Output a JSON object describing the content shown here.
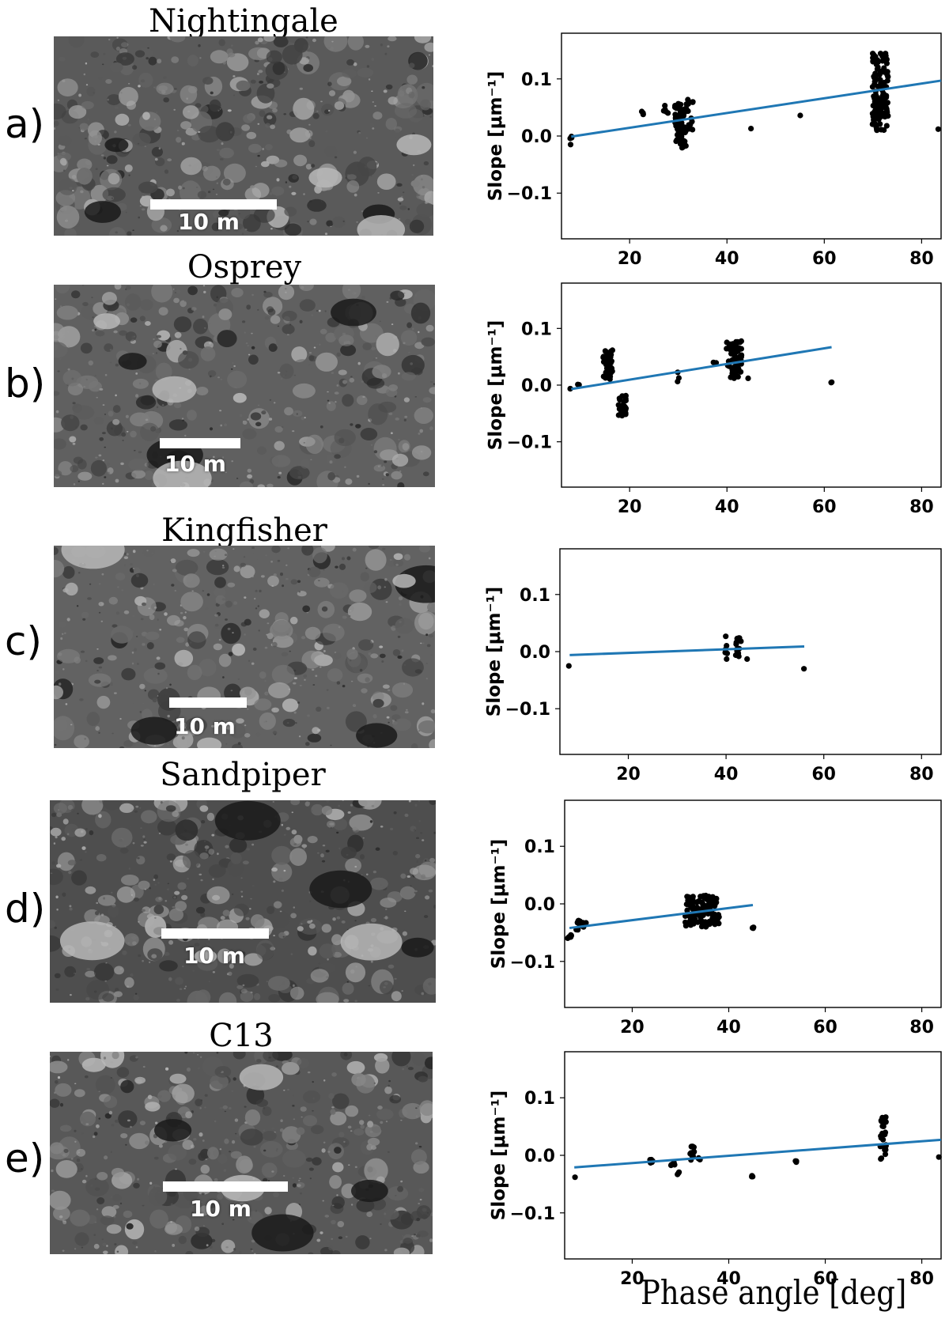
{
  "x_axis_label": "Phase angle [deg]",
  "panels": [
    {
      "letter": "a)",
      "site": "Nightingale",
      "scale": "10 m",
      "ylabel": "Slope [μm⁻¹]"
    },
    {
      "letter": "b)",
      "site": "Osprey",
      "scale": "10 m",
      "ylabel": "Slope [μm⁻¹]"
    },
    {
      "letter": "c)",
      "site": "Kingfisher",
      "scale": "10 m",
      "ylabel": "Slope [μm⁻¹]"
    },
    {
      "letter": "d)",
      "site": "Sandpiper",
      "scale": "10 m",
      "ylabel": "Slope [μm⁻¹]"
    },
    {
      "letter": "e)",
      "site": "C13",
      "scale": "10 m",
      "ylabel": "Slope [μm⁻¹]"
    }
  ],
  "colors": {
    "fit_line": "#1f77b4",
    "points": "#000000"
  },
  "chart_data": [
    {
      "type": "scatter",
      "title": "Nightingale",
      "xlabel": "Phase angle [deg]",
      "ylabel": "Slope [μm⁻¹]",
      "xlim": [
        6,
        84
      ],
      "ylim": [
        -0.18,
        0.18
      ],
      "xticks": [
        20,
        40,
        60,
        80
      ],
      "yticks": [
        0.1,
        0.0,
        -0.1
      ],
      "ytick_labels": [
        "0.1",
        "0.0",
        "−0.1"
      ],
      "fit": {
        "x": [
          8,
          84
        ],
        "y": [
          -0.001,
          0.097
        ]
      },
      "clusters": [
        {
          "x_center": 8,
          "x_spread": 0.3,
          "y_min": -0.018,
          "y_max": 0.002,
          "count": 5
        },
        {
          "x_center": 22.5,
          "x_spread": 0.3,
          "y_min": 0.036,
          "y_max": 0.045,
          "count": 3
        },
        {
          "x_center": 27.5,
          "x_spread": 0.6,
          "y_min": 0.04,
          "y_max": 0.055,
          "count": 5
        },
        {
          "x_center": 30.5,
          "x_spread": 1.2,
          "y_min": -0.022,
          "y_max": 0.058,
          "count": 80
        },
        {
          "x_center": 32.5,
          "x_spread": 0.6,
          "y_min": 0.005,
          "y_max": 0.065,
          "count": 15
        },
        {
          "x_center": 45,
          "x_spread": 0.1,
          "y_min": 0.013,
          "y_max": 0.013,
          "count": 1
        },
        {
          "x_center": 55,
          "x_spread": 0.1,
          "y_min": 0.036,
          "y_max": 0.036,
          "count": 1
        },
        {
          "x_center": 71.5,
          "x_spread": 1.6,
          "y_min": 0.01,
          "y_max": 0.145,
          "count": 120
        },
        {
          "x_center": 83.5,
          "x_spread": 0.1,
          "y_min": 0.012,
          "y_max": 0.012,
          "count": 1
        }
      ]
    },
    {
      "type": "scatter",
      "title": "Osprey",
      "xlabel": "Phase angle [deg]",
      "ylabel": "Slope [μm⁻¹]",
      "xlim": [
        6,
        84
      ],
      "ylim": [
        -0.18,
        0.18
      ],
      "xticks": [
        20,
        40,
        60,
        80
      ],
      "yticks": [
        0.1,
        0.0,
        -0.1
      ],
      "ytick_labels": [
        "0.1",
        "0.0",
        "−0.1"
      ],
      "fit": {
        "x": [
          8,
          61.5
        ],
        "y": [
          -0.007,
          0.067
        ]
      },
      "clusters": [
        {
          "x_center": 8,
          "x_spread": 0.3,
          "y_min": -0.01,
          "y_max": -0.005,
          "count": 2
        },
        {
          "x_center": 9.5,
          "x_spread": 0.2,
          "y_min": 0.0,
          "y_max": 0.003,
          "count": 2
        },
        {
          "x_center": 15.5,
          "x_spread": 1.0,
          "y_min": 0.01,
          "y_max": 0.063,
          "count": 40
        },
        {
          "x_center": 18.5,
          "x_spread": 0.8,
          "y_min": -0.055,
          "y_max": -0.015,
          "count": 30
        },
        {
          "x_center": 30,
          "x_spread": 0.3,
          "y_min": 0.005,
          "y_max": 0.025,
          "count": 3
        },
        {
          "x_center": 37.5,
          "x_spread": 0.5,
          "y_min": 0.03,
          "y_max": 0.045,
          "count": 3
        },
        {
          "x_center": 41.5,
          "x_spread": 1.6,
          "y_min": 0.012,
          "y_max": 0.08,
          "count": 60
        },
        {
          "x_center": 44.5,
          "x_spread": 0.2,
          "y_min": 0.012,
          "y_max": 0.015,
          "count": 1
        },
        {
          "x_center": 61.5,
          "x_spread": 0.2,
          "y_min": -0.013,
          "y_max": 0.013,
          "count": 2
        }
      ]
    },
    {
      "type": "scatter",
      "title": "Kingfisher",
      "xlabel": "Phase angle [deg]",
      "ylabel": "Slope [μm⁻¹]",
      "xlim": [
        6,
        84
      ],
      "ylim": [
        -0.18,
        0.18
      ],
      "xticks": [
        20,
        40,
        60,
        80
      ],
      "yticks": [
        0.1,
        0.0,
        -0.1
      ],
      "ytick_labels": [
        "0.1",
        "0.0",
        "−0.1"
      ],
      "fit": {
        "x": [
          8,
          56
        ],
        "y": [
          -0.006,
          0.009
        ]
      },
      "clusters": [
        {
          "x_center": 8,
          "x_spread": 0.2,
          "y_min": -0.025,
          "y_max": -0.025,
          "count": 1
        },
        {
          "x_center": 40,
          "x_spread": 0.3,
          "y_min": -0.015,
          "y_max": 0.028,
          "count": 6
        },
        {
          "x_center": 42.5,
          "x_spread": 0.6,
          "y_min": -0.012,
          "y_max": 0.043,
          "count": 12
        },
        {
          "x_center": 44.5,
          "x_spread": 0.2,
          "y_min": -0.013,
          "y_max": -0.013,
          "count": 1
        },
        {
          "x_center": 56,
          "x_spread": 0.2,
          "y_min": -0.03,
          "y_max": -0.03,
          "count": 1
        }
      ]
    },
    {
      "type": "scatter",
      "title": "Sandpiper",
      "xlabel": "Phase angle [deg]",
      "ylabel": "Slope [μm⁻¹]",
      "xlim": [
        6,
        84
      ],
      "ylim": [
        -0.18,
        0.18
      ],
      "xticks": [
        20,
        40,
        60,
        80
      ],
      "yticks": [
        0.1,
        0.0,
        -0.1
      ],
      "ytick_labels": [
        "0.1",
        "0.0",
        "−0.1"
      ],
      "fit": {
        "x": [
          7,
          45
        ],
        "y": [
          -0.042,
          -0.002
        ]
      },
      "clusters": [
        {
          "x_center": 7,
          "x_spread": 0.4,
          "y_min": -0.062,
          "y_max": -0.054,
          "count": 6
        },
        {
          "x_center": 9.5,
          "x_spread": 1.2,
          "y_min": -0.046,
          "y_max": -0.028,
          "count": 15
        },
        {
          "x_center": 34.5,
          "x_spread": 3.5,
          "y_min": -0.04,
          "y_max": 0.015,
          "count": 120
        },
        {
          "x_center": 45,
          "x_spread": 0.2,
          "y_min": -0.045,
          "y_max": -0.033,
          "count": 3
        }
      ]
    },
    {
      "type": "scatter",
      "title": "C13",
      "xlabel": "Phase angle [deg]",
      "ylabel": "Slope [μm⁻¹]",
      "xlim": [
        6,
        84
      ],
      "ylim": [
        -0.18,
        0.18
      ],
      "xticks": [
        20,
        40,
        60,
        80
      ],
      "yticks": [
        0.1,
        0.0,
        -0.1
      ],
      "ytick_labels": [
        "0.1",
        "0.0",
        "−0.1"
      ],
      "fit": {
        "x": [
          8,
          84
        ],
        "y": [
          -0.021,
          0.027
        ]
      },
      "clusters": [
        {
          "x_center": 8,
          "x_spread": 0.2,
          "y_min": -0.038,
          "y_max": -0.038,
          "count": 1
        },
        {
          "x_center": 24,
          "x_spread": 0.3,
          "y_min": -0.015,
          "y_max": -0.005,
          "count": 5
        },
        {
          "x_center": 28.5,
          "x_spread": 0.5,
          "y_min": -0.02,
          "y_max": -0.01,
          "count": 5
        },
        {
          "x_center": 29.8,
          "x_spread": 0.5,
          "y_min": -0.034,
          "y_max": -0.025,
          "count": 3
        },
        {
          "x_center": 32.5,
          "x_spread": 0.5,
          "y_min": -0.01,
          "y_max": 0.02,
          "count": 15
        },
        {
          "x_center": 34,
          "x_spread": 0.3,
          "y_min": -0.01,
          "y_max": -0.003,
          "count": 3
        },
        {
          "x_center": 45,
          "x_spread": 0.3,
          "y_min": -0.037,
          "y_max": -0.034,
          "count": 3
        },
        {
          "x_center": 54,
          "x_spread": 0.2,
          "y_min": -0.012,
          "y_max": -0.007,
          "count": 3
        },
        {
          "x_center": 72,
          "x_spread": 0.6,
          "y_min": -0.008,
          "y_max": 0.07,
          "count": 25
        },
        {
          "x_center": 83.5,
          "x_spread": 0.2,
          "y_min": -0.003,
          "y_max": -0.003,
          "count": 1
        }
      ]
    }
  ]
}
